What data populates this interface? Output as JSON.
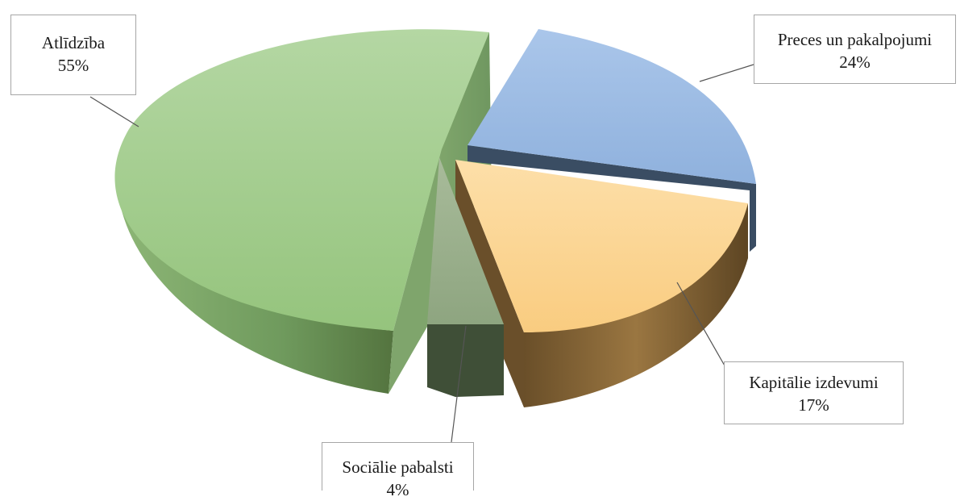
{
  "chart_data": {
    "type": "pie",
    "style": "3d-exploded",
    "title": "",
    "slices": [
      {
        "label": "Atlīdzība",
        "percent_label": "55%",
        "value": 55,
        "color": "#a3cc8f",
        "side_color": "#7ba567",
        "dark_color": "#587849"
      },
      {
        "label": "Preces un pakalpojumi",
        "percent_label": "24%",
        "value": 24,
        "color": "#9fbde3",
        "side_color": "#3f546e",
        "dark_color": "#2c3d52"
      },
      {
        "label": "Kapitālie izdevumi",
        "percent_label": "17%",
        "value": 17,
        "color": "#fcd596",
        "side_color": "#8a6a3a",
        "dark_color": "#5a4221"
      },
      {
        "label": "Sociālie pabalsti",
        "percent_label": "4%",
        "value": 4,
        "color": "#9aaf8c",
        "side_color": "#566b4b",
        "dark_color": "#3b4a33"
      }
    ]
  }
}
